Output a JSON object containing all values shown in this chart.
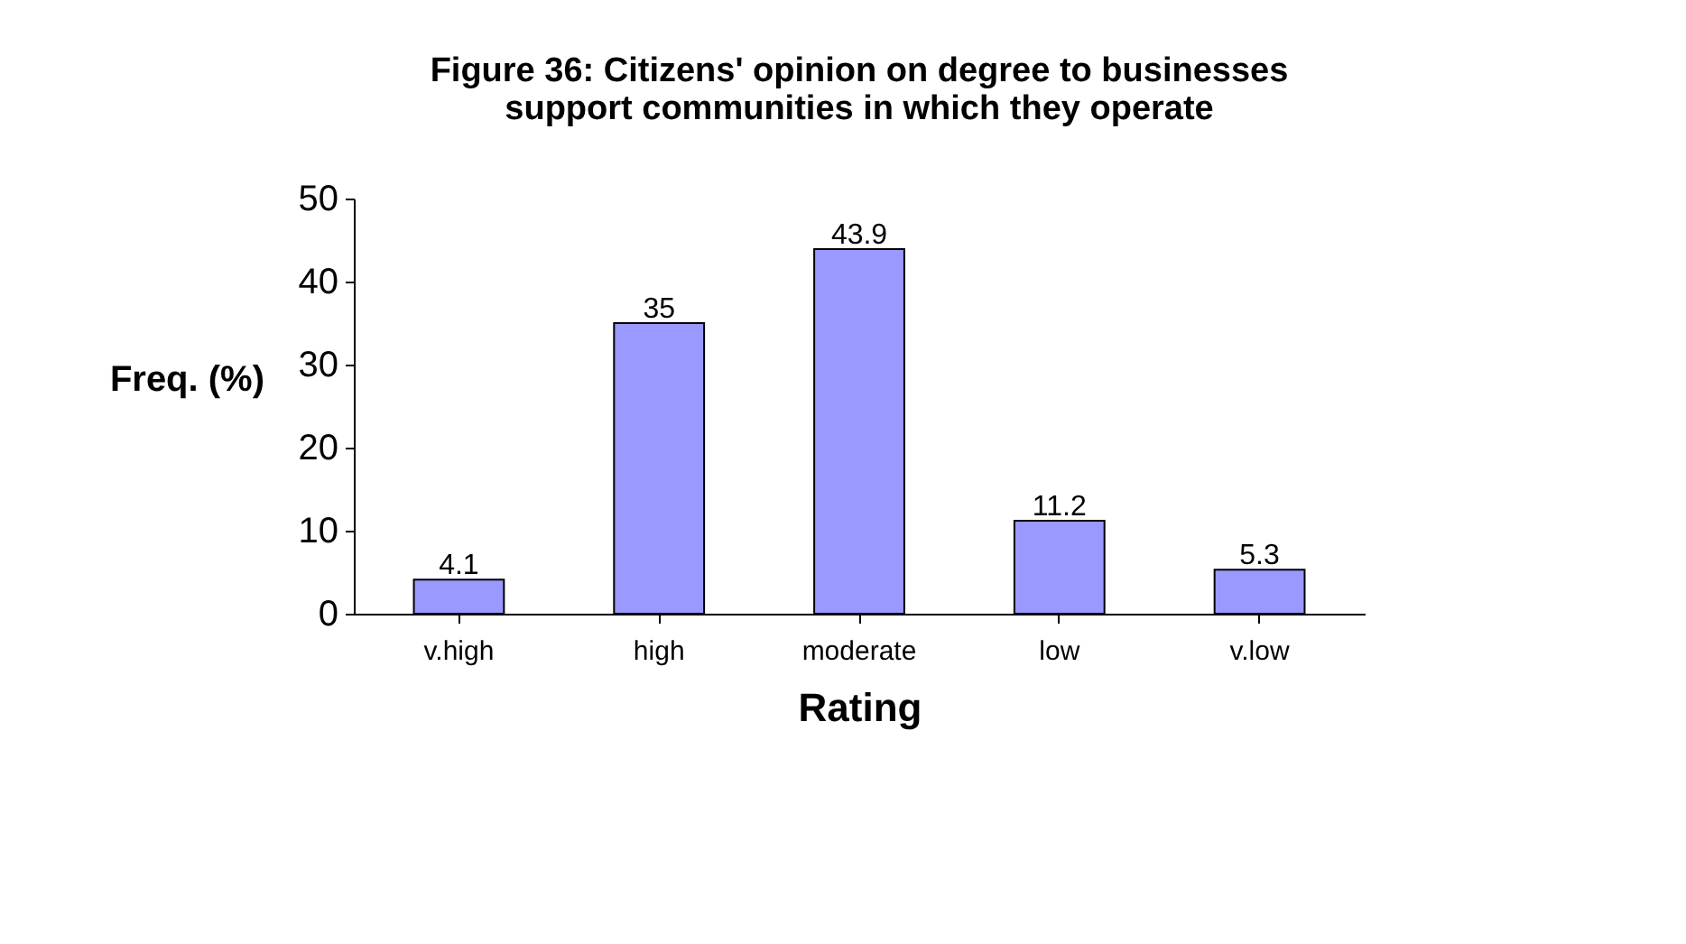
{
  "chart_data": {
    "type": "bar",
    "title": "Figure 36: Citizens' opinion on degree to businesses support communities in which they operate",
    "categories": [
      "v.high",
      "high",
      "moderate",
      "low",
      "v.low"
    ],
    "values": [
      4.1,
      35,
      43.9,
      11.2,
      5.3
    ],
    "color": "#9999ff",
    "xlabel": "Rating",
    "ylabel": "Freq. (%)",
    "ylim": [
      0,
      50
    ],
    "yticks": [
      0,
      10,
      20,
      30,
      40,
      50
    ],
    "grid": false,
    "data_labels": true
  }
}
